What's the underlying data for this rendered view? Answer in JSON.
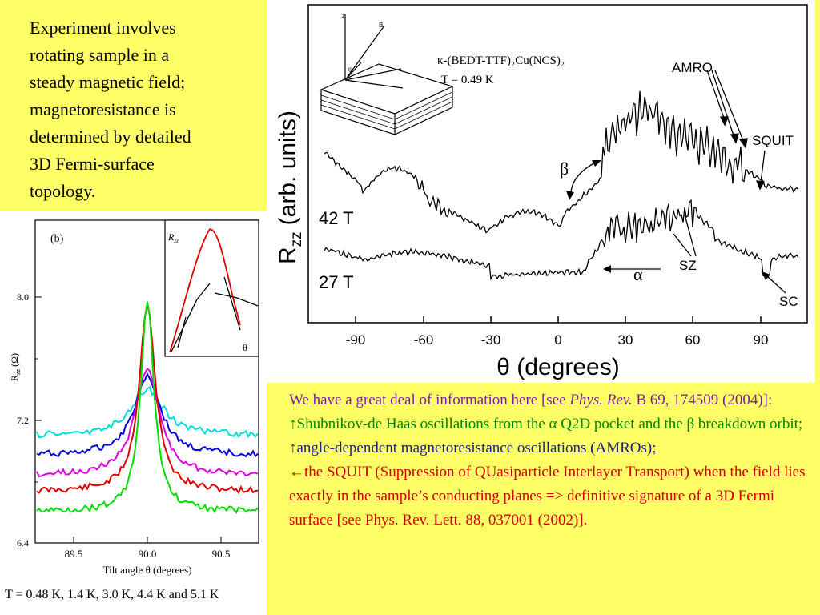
{
  "top_left_text": "Experiment involves\nrotating sample in a\nsteady magnetic field;\nmagnetoresistance is\ndetermined by detailed\n3D Fermi-surface\ntopology.",
  "main_plot": {
    "compound": "κ-(BEDT-TTF)₂Cu(NCS)₂",
    "temperature": "T = 0.49 K",
    "ylabel": "R",
    "ylabel_sub": "zz",
    "ylabel_units": "(arb. units)",
    "xlabel": "θ (degrees)",
    "xticks": [
      "-90",
      "-60",
      "-30",
      "0",
      "30",
      "60",
      "90"
    ],
    "field_labels": [
      "42 T",
      "27 T"
    ],
    "annotations": {
      "amro": "AMRO",
      "squit": "SQUIT",
      "sz": "SZ",
      "sc": "SC",
      "beta": "β",
      "alpha": "α"
    }
  },
  "inset_plot": {
    "panel": "(b)",
    "ylabel": "R",
    "ylabel_sub": "zz",
    "ylabel_units": "(Ω)",
    "yticks": [
      "8.0",
      "7.2",
      "6.4"
    ],
    "xticks": [
      "89.5",
      "90.0",
      "90.5"
    ],
    "xlabel": "Tilt angle θ (degrees)",
    "inner_inset": {
      "ylabel": "R",
      "ylabel_sub": "zz",
      "xlabel": "θ"
    },
    "series_colors": [
      "#00dd00",
      "#dd0000",
      "#dd00dd",
      "#0000dd",
      "#00dddd"
    ]
  },
  "caption": "T = 0.48 K, 1.4 K, 3.0 K, 4.4 K and 5.1 K",
  "info": {
    "p1_pre": "We have a great deal of information here [see ",
    "p1_journal": "Phys. Rev.",
    "p1_post": " B 69, 174509 (2004)]:",
    "p2": "↑Shubnikov-de Haas oscillations from the α Q2D pocket and the β breakdown orbit;",
    "p3": "↑angle-dependent magnetoresistance oscillations (AMROs);",
    "p4": "←the SQUIT (Suppression of QUasiparticle Interlayer Transport) when the field lies exactly in the sample’s conducting planes => definitive signature of a 3D Fermi surface [see Phys. Rev. Lett. 88, 037001 (2002)]."
  }
}
